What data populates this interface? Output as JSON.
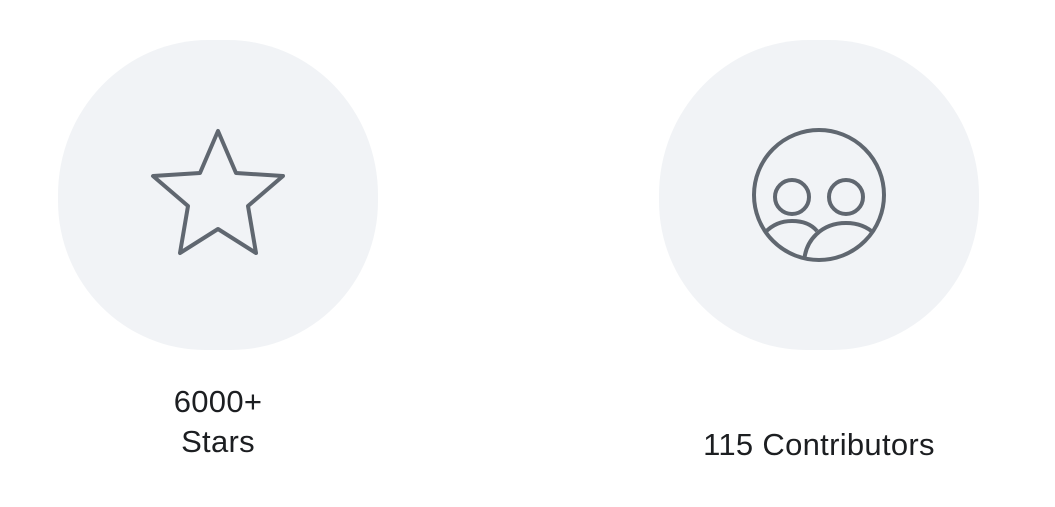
{
  "stats": [
    {
      "icon": "star-icon",
      "value": "6000+",
      "caption": "Stars"
    },
    {
      "icon": "contributors-icon",
      "value": "115 Contributors"
    }
  ],
  "colors": {
    "blob_background": "#f1f3f6",
    "icon_stroke": "#606770",
    "text": "#1c1e21"
  }
}
